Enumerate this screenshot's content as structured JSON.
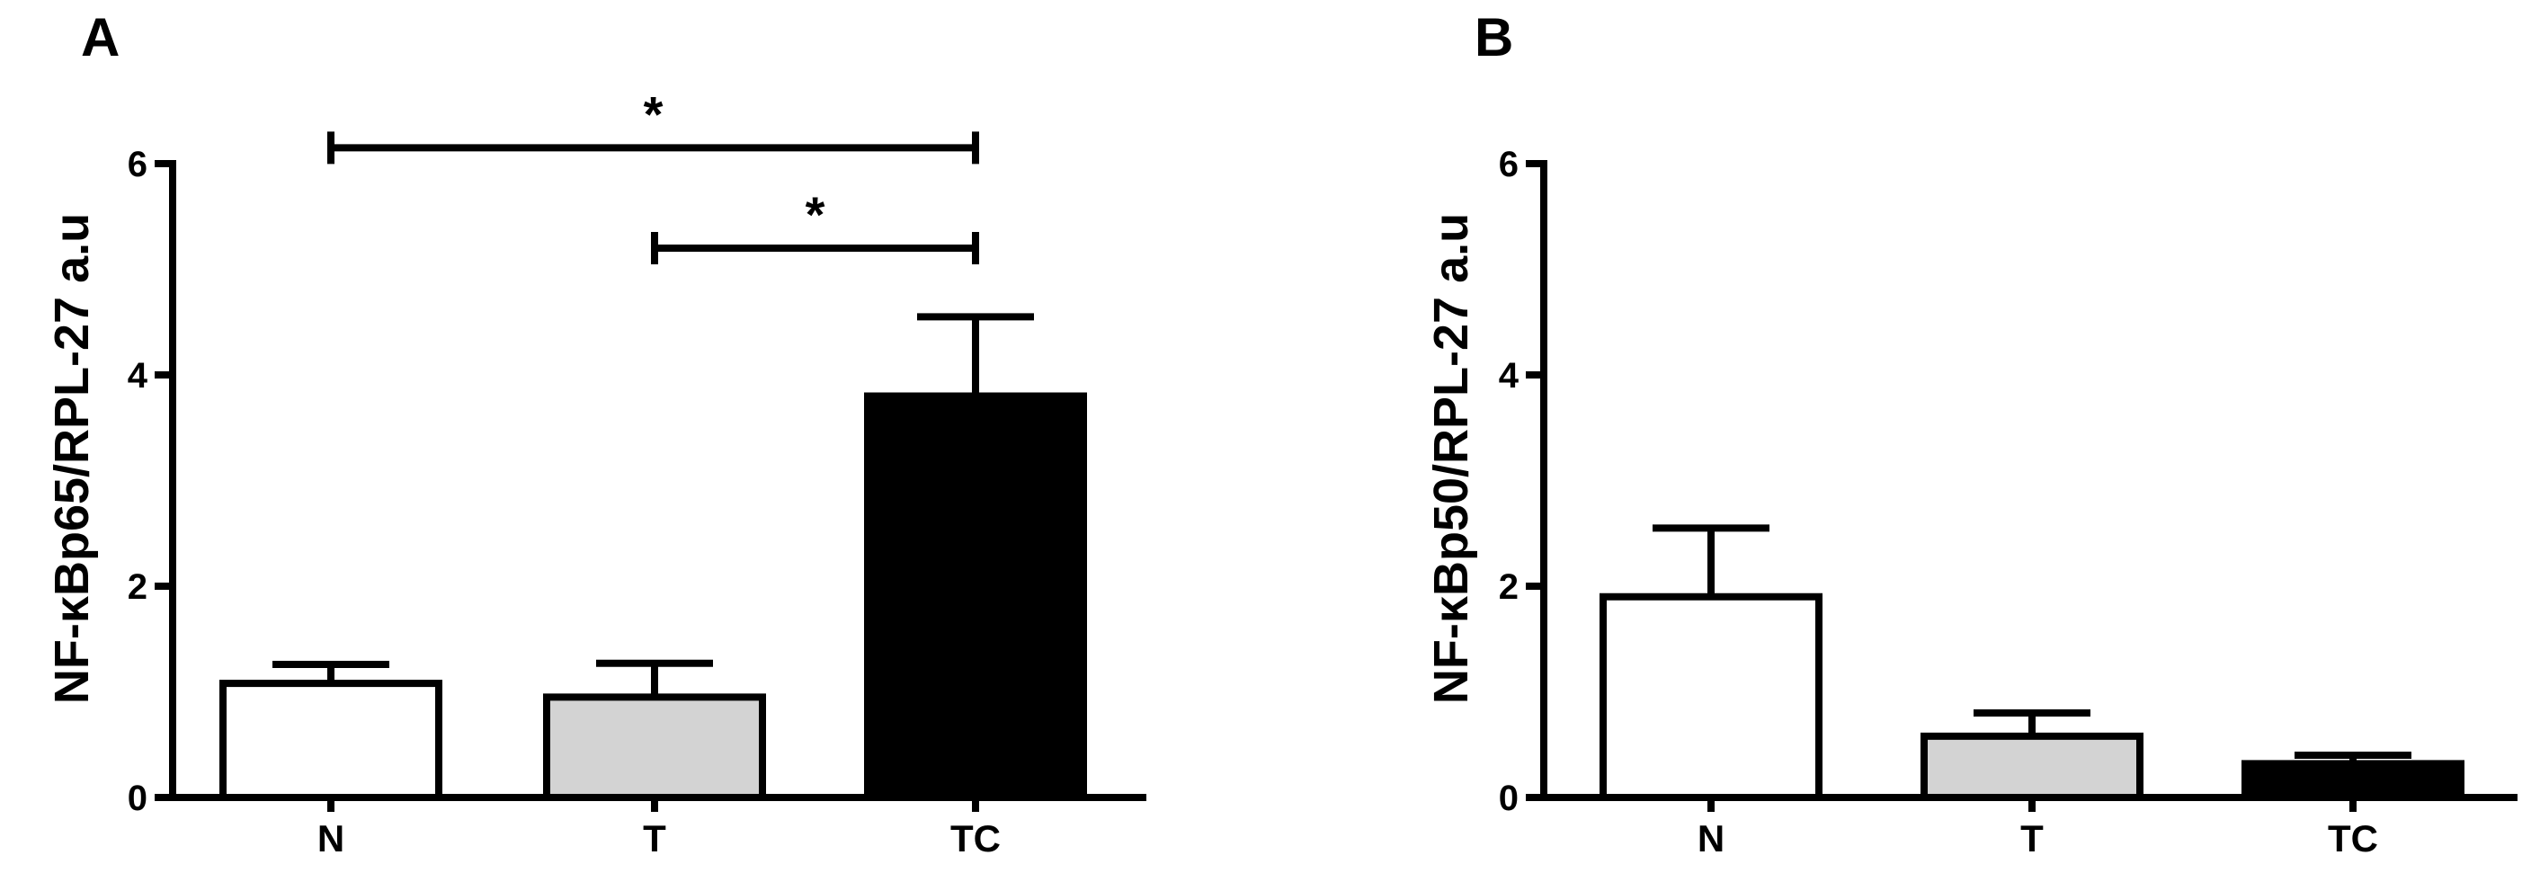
{
  "chart_data": [
    {
      "type": "bar",
      "panel": "A",
      "ylabel": "NF-κBp65/RPL-27 a.u",
      "categories": [
        "N",
        "T",
        "TC"
      ],
      "values": [
        1.08,
        0.95,
        3.8
      ],
      "errors": [
        0.18,
        0.32,
        0.75
      ],
      "colors": [
        "#ffffff",
        "#d3d3d3",
        "#000000"
      ],
      "ylim": [
        0,
        6
      ],
      "yticks": [
        "0",
        "2",
        "4",
        "6"
      ],
      "grid": false,
      "significance": [
        {
          "from": "N",
          "to": "TC",
          "label": "*",
          "y": 6.15
        },
        {
          "from": "T",
          "to": "TC",
          "label": "*",
          "y": 5.2
        }
      ]
    },
    {
      "type": "bar",
      "panel": "B",
      "ylabel": "NF-κBp50/RPL-27 a.u",
      "categories": [
        "N",
        "T",
        "TC"
      ],
      "values": [
        1.9,
        0.58,
        0.32
      ],
      "errors": [
        0.65,
        0.22,
        0.08
      ],
      "colors": [
        "#ffffff",
        "#d3d3d3",
        "#000000"
      ],
      "ylim": [
        0,
        6
      ],
      "yticks": [
        "0",
        "2",
        "4",
        "6"
      ],
      "grid": false,
      "significance": []
    }
  ]
}
